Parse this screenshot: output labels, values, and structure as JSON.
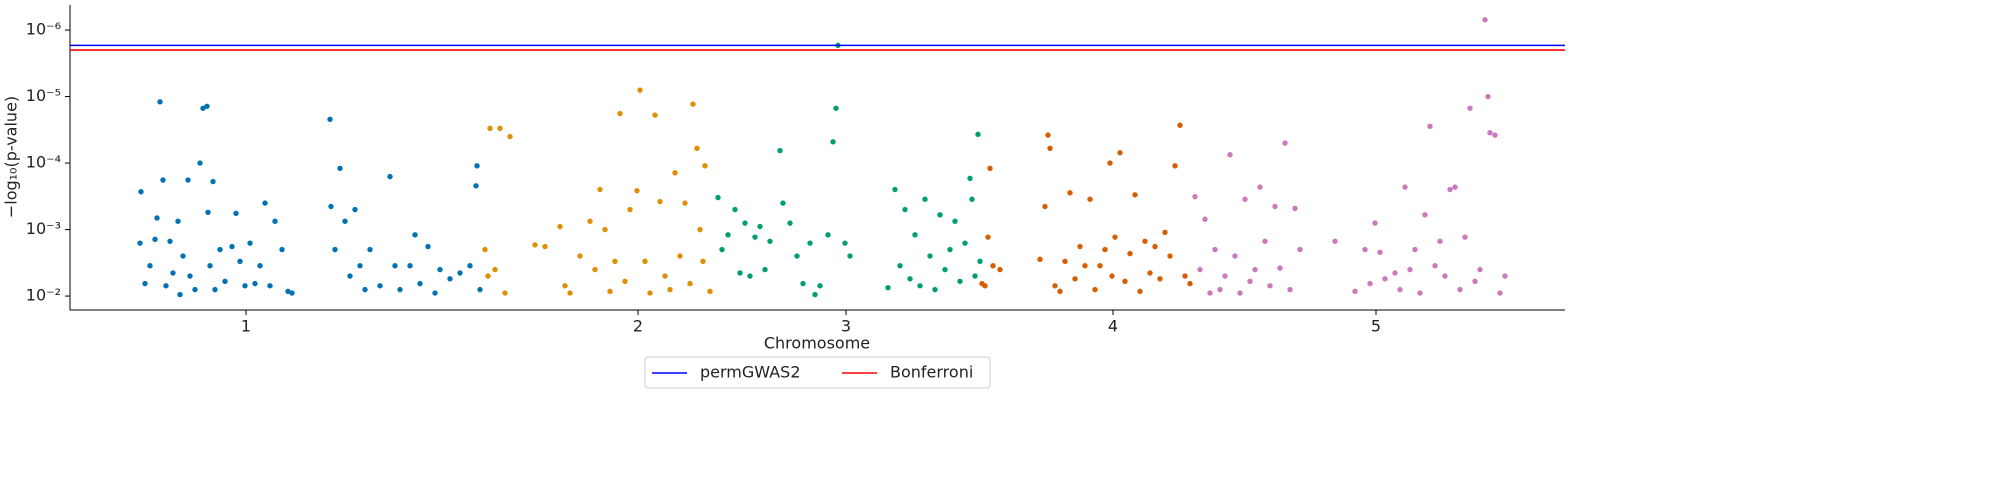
{
  "chart_data": {
    "type": "manhattan",
    "xlabel": "Chromosome",
    "ylabel": "−log₁₀(p-value)",
    "yscale": "log",
    "ylim": [
      0.0162,
      4.2e-07
    ],
    "yticks": [
      {
        "value": 0.01,
        "label": "10⁻²"
      },
      {
        "value": 0.001,
        "label": "10⁻³"
      },
      {
        "value": 0.0001,
        "label": "10⁻⁴"
      },
      {
        "value": 1e-05,
        "label": "10⁻⁵"
      },
      {
        "value": 1e-06,
        "label": "10⁻⁶"
      }
    ],
    "xlim": [
      70,
      1565
    ],
    "xticks": [
      {
        "value": 246,
        "label": "1"
      },
      {
        "value": 638,
        "label": "2"
      },
      {
        "value": 846,
        "label": "3"
      },
      {
        "value": 1113,
        "label": "4"
      },
      {
        "value": 1376,
        "label": "5"
      }
    ],
    "thresholds": [
      {
        "name": "permGWAS2",
        "color": "#0000ff",
        "value": 1.7e-06
      },
      {
        "name": "Bonferroni",
        "color": "#ff0000",
        "value": 2e-06
      }
    ],
    "legend": "lower center",
    "series": [
      {
        "color": "#0173b2",
        "x": [
          140,
          141,
          145,
          150,
          155,
          157,
          160,
          163,
          166,
          170,
          173,
          178,
          180,
          183,
          188,
          190,
          195,
          200,
          203,
          207,
          208,
          210,
          213,
          215,
          220,
          225,
          232,
          236,
          240,
          245,
          250,
          255,
          260,
          265,
          270,
          275,
          282,
          288,
          292,
          330,
          331,
          335,
          340,
          345,
          350,
          355,
          360,
          365,
          370,
          380,
          390,
          395,
          400,
          410,
          415,
          420,
          428,
          435,
          440,
          450,
          460,
          470,
          476,
          477,
          480
        ],
        "values": [
          0.0016,
          0.00027,
          0.0065,
          0.0035,
          0.0014,
          0.00067,
          1.2e-05,
          0.00018,
          0.007,
          0.0015,
          0.0045,
          0.00075,
          0.0095,
          0.0025,
          0.00018,
          0.005,
          0.008,
          0.0001,
          1.5e-05,
          1.4e-05,
          0.00055,
          0.0035,
          0.00019,
          0.008,
          0.002,
          0.006,
          0.0018,
          0.00057,
          0.003,
          0.007,
          0.0016,
          0.0065,
          0.0035,
          0.0004,
          0.007,
          0.00075,
          0.002,
          0.0085,
          0.009,
          2.2e-05,
          0.00045,
          0.002,
          0.00012,
          0.00075,
          0.005,
          0.0005,
          0.0035,
          0.008,
          0.002,
          0.007,
          0.00016,
          0.0035,
          0.008,
          0.0035,
          0.0012,
          0.0065,
          0.0018,
          0.009,
          0.004,
          0.0055,
          0.0045,
          0.0035,
          0.00022,
          0.00011,
          0.008
        ]
      },
      {
        "color": "#de8f05",
        "x": [
          485,
          488,
          490,
          495,
          500,
          505,
          510,
          535,
          545,
          560,
          565,
          570,
          580,
          590,
          595,
          600,
          605,
          610,
          615,
          620,
          625,
          630,
          637,
          640,
          645,
          650,
          655,
          660,
          665,
          670,
          675,
          680,
          685,
          690,
          693,
          697,
          700,
          703,
          705,
          710
        ],
        "values": [
          0.002,
          0.005,
          3e-05,
          0.004,
          3e-05,
          0.009,
          4e-05,
          0.0017,
          0.0018,
          0.0009,
          0.007,
          0.009,
          0.0025,
          0.00075,
          0.004,
          0.00025,
          0.001,
          0.0085,
          0.003,
          1.8e-05,
          0.006,
          0.0005,
          0.00026,
          8e-06,
          0.003,
          0.009,
          1.9e-05,
          0.00038,
          0.005,
          0.008,
          0.00014,
          0.0025,
          0.0004,
          0.0065,
          1.3e-05,
          6e-05,
          0.001,
          0.003,
          0.00011,
          0.0085
        ]
      },
      {
        "color": "#029e73",
        "x": [
          718,
          722,
          728,
          735,
          740,
          745,
          750,
          755,
          760,
          765,
          770,
          780,
          783,
          790,
          797,
          803,
          810,
          815,
          820,
          828,
          833,
          836,
          838,
          845,
          850,
          888,
          895,
          900,
          905,
          910,
          915,
          920,
          925,
          930,
          935,
          940,
          945,
          950,
          955,
          960,
          965,
          970,
          972,
          975,
          978,
          980
        ],
        "values": [
          0.00033,
          0.002,
          0.0012,
          0.0005,
          0.0045,
          0.0008,
          0.005,
          0.0013,
          0.0009,
          0.004,
          0.0015,
          6.5e-05,
          0.0004,
          0.0008,
          0.0025,
          0.0065,
          0.0016,
          0.0095,
          0.007,
          0.0012,
          4.8e-05,
          1.5e-05,
          1.7e-06,
          0.0016,
          0.0025,
          0.0075,
          0.00025,
          0.0035,
          0.0005,
          0.0055,
          0.0012,
          0.007,
          0.00035,
          0.0025,
          0.008,
          0.0006,
          0.004,
          0.002,
          0.00075,
          0.006,
          0.0016,
          0.00017,
          0.00035,
          0.005,
          3.7e-05,
          0.003
        ]
      },
      {
        "color": "#d55e00",
        "x": [
          982,
          985,
          988,
          990,
          993,
          1000,
          1040,
          1045,
          1048,
          1050,
          1055,
          1060,
          1065,
          1070,
          1075,
          1080,
          1085,
          1090,
          1095,
          1100,
          1105,
          1110,
          1112,
          1115,
          1120,
          1125,
          1130,
          1135,
          1140,
          1145,
          1150,
          1155,
          1160,
          1165,
          1170,
          1175,
          1180,
          1185,
          1190
        ],
        "values": [
          0.0065,
          0.007,
          0.0013,
          0.00012,
          0.0035,
          0.004,
          0.0028,
          0.00045,
          3.8e-05,
          6e-05,
          0.007,
          0.0085,
          0.003,
          0.00028,
          0.0055,
          0.0018,
          0.0035,
          0.00035,
          0.008,
          0.0035,
          0.002,
          0.0001,
          0.005,
          0.0013,
          7e-05,
          0.006,
          0.0023,
          0.0003,
          0.0085,
          0.0015,
          0.0045,
          0.0018,
          0.0055,
          0.0011,
          0.0025,
          0.00011,
          2.7e-05,
          0.005,
          0.0065
        ]
      },
      {
        "color": "#cc78bc",
        "x": [
          1195,
          1200,
          1205,
          1210,
          1215,
          1220,
          1225,
          1230,
          1235,
          1240,
          1245,
          1250,
          1255,
          1260,
          1265,
          1270,
          1275,
          1280,
          1285,
          1290,
          1295,
          1300,
          1335,
          1355,
          1365,
          1370,
          1375,
          1380,
          1385,
          1395,
          1400,
          1405,
          1410,
          1415,
          1420,
          1425,
          1430,
          1435,
          1440,
          1445,
          1450,
          1455,
          1460,
          1465,
          1470,
          1475,
          1480,
          1485,
          1488,
          1490,
          1495,
          1500,
          1505
        ],
        "values": [
          0.00032,
          0.004,
          0.0007,
          0.009,
          0.002,
          0.008,
          0.005,
          7.5e-05,
          0.0025,
          0.009,
          0.00035,
          0.006,
          0.004,
          0.00023,
          0.0015,
          0.007,
          0.00045,
          0.0038,
          5e-05,
          0.008,
          0.00048,
          0.002,
          0.0015,
          0.0085,
          0.002,
          0.0065,
          0.0008,
          0.0022,
          0.0055,
          0.0045,
          0.008,
          0.00023,
          0.004,
          0.002,
          0.009,
          0.0006,
          2.8e-05,
          0.0035,
          0.0015,
          0.005,
          0.00025,
          0.00023,
          0.008,
          0.0013,
          1.5e-05,
          0.006,
          0.004,
          7e-07,
          1e-05,
          3.5e-05,
          3.8e-05,
          0.009,
          0.005
        ]
      }
    ]
  }
}
